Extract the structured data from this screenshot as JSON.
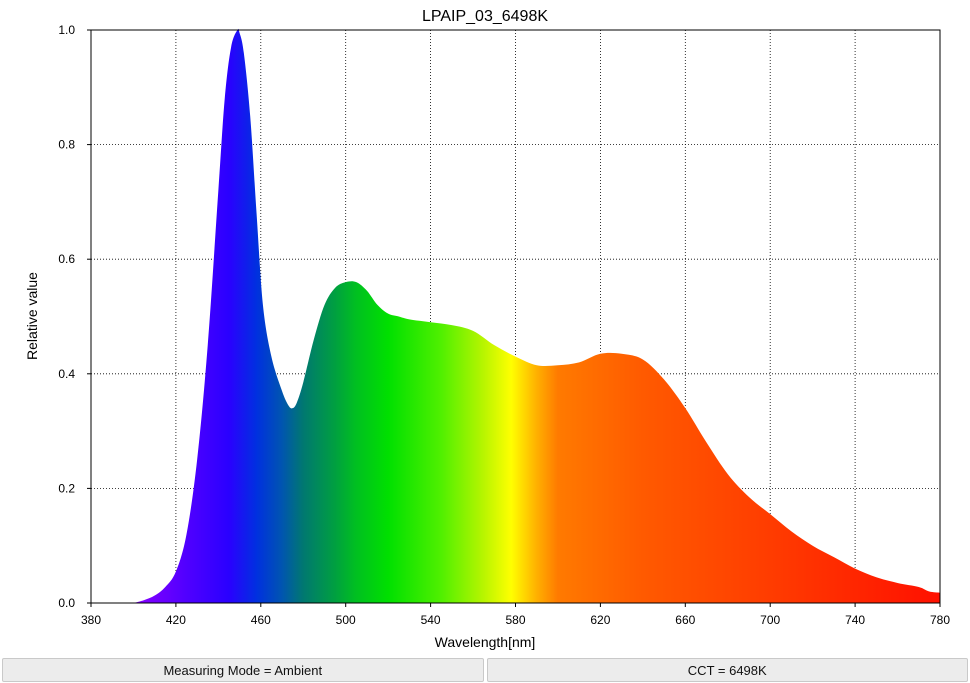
{
  "chart_data": {
    "type": "area",
    "title": "LPAIP_03_6498K",
    "xlabel": "Wavelength[nm]",
    "ylabel": "Relative value",
    "xlim": [
      380,
      780
    ],
    "ylim": [
      0,
      1.0
    ],
    "xticks": [
      380,
      420,
      460,
      500,
      540,
      580,
      620,
      660,
      700,
      740,
      780
    ],
    "yticks": [
      "0.0",
      "0.2",
      "0.4",
      "0.6",
      "0.8",
      "1.0"
    ],
    "grid": true,
    "grid_style": "dotted",
    "fill": "visible-spectrum-gradient",
    "x": [
      400,
      405,
      410,
      415,
      420,
      425,
      430,
      435,
      440,
      443,
      446,
      449,
      450,
      452,
      455,
      458,
      461,
      465,
      470,
      473,
      475,
      477,
      480,
      485,
      490,
      495,
      500,
      505,
      510,
      515,
      520,
      525,
      530,
      540,
      550,
      560,
      570,
      580,
      590,
      600,
      610,
      620,
      630,
      640,
      650,
      660,
      670,
      680,
      690,
      700,
      710,
      720,
      730,
      740,
      750,
      760,
      770,
      775,
      780
    ],
    "y": [
      0.0,
      0.005,
      0.013,
      0.028,
      0.055,
      0.12,
      0.25,
      0.45,
      0.72,
      0.88,
      0.97,
      1.0,
      0.995,
      0.96,
      0.85,
      0.68,
      0.52,
      0.43,
      0.37,
      0.345,
      0.34,
      0.35,
      0.385,
      0.46,
      0.52,
      0.55,
      0.56,
      0.56,
      0.545,
      0.52,
      0.505,
      0.5,
      0.495,
      0.49,
      0.485,
      0.475,
      0.45,
      0.43,
      0.415,
      0.415,
      0.42,
      0.435,
      0.435,
      0.425,
      0.39,
      0.34,
      0.28,
      0.225,
      0.185,
      0.155,
      0.125,
      0.1,
      0.08,
      0.06,
      0.045,
      0.035,
      0.028,
      0.02,
      0.018
    ]
  },
  "status": {
    "mode": "Measuring Mode = Ambient",
    "cct": "CCT = 6498K"
  }
}
